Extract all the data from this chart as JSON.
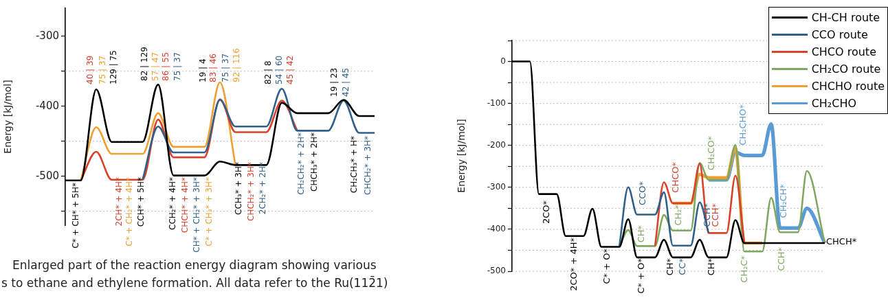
{
  "chart_data": [
    {
      "type": "line",
      "ylabel": "Energy [kJ/mol]",
      "ylim": [
        -570,
        -260
      ],
      "yticks": [
        {
          "value": -550,
          "label": null
        },
        -500,
        {
          "value": -450,
          "label": null
        },
        -400,
        {
          "value": -350,
          "label": null
        },
        -300
      ],
      "grid": true,
      "categories": [
        null,
        null,
        null,
        null,
        null,
        null,
        null,
        null,
        null,
        null,
        null,
        null,
        null,
        null,
        null,
        null,
        null,
        null,
        null,
        null,
        null
      ],
      "series": [
        {
          "color": "#000000",
          "values": [
            -506,
            -506,
            -376,
            -451,
            -451,
            -451,
            -369,
            -499,
            -499,
            -499,
            -479,
            -484,
            -484,
            -484,
            -395,
            -410,
            -410,
            -410,
            -391,
            -414,
            -414
          ]
        },
        {
          "color": "#2f5f8a",
          "values": [
            null,
            null,
            null,
            null,
            null,
            -505,
            -429,
            -466,
            -466,
            -466,
            -391,
            -429,
            -429,
            -429,
            -375,
            -435,
            -435,
            -435,
            -392,
            -438,
            -438
          ]
        },
        {
          "color": "#d9412b",
          "values": [
            null,
            -506,
            -465,
            -505,
            -505,
            -505,
            -419,
            -473,
            -473,
            -473,
            -390,
            -437,
            -437,
            -437,
            -392,
            -435,
            null,
            null,
            null,
            null,
            null
          ]
        },
        {
          "color": "#f0a030",
          "values": [
            null,
            -506,
            -430,
            -468,
            -468,
            -468,
            -410,
            -458,
            -458,
            -458,
            -366,
            -484,
            null,
            null,
            null,
            null,
            null,
            null,
            null,
            null,
            null
          ]
        }
      ],
      "annotations": [
        "40 | 39",
        "75 | 37",
        "129 | 75",
        "82 | 129",
        "57 | 47",
        "86 | 55",
        "75 | 37",
        "19 | 4",
        "83 | 46",
        "75 | 37",
        "92 | 116",
        "82 | 8",
        "54 | 60",
        "45 | 42",
        "19 | 23",
        "42 | 45",
        "C* + CH* + 5H*",
        "2CH* + 4H*",
        "C* + CH₂* + 4H*",
        "CCH* + 5H*",
        "CCH₂* + 4H*",
        "CHCH* + 4H*",
        "CH* + CH₂* + 3H*",
        "C* + CH₃* + 3H*",
        "CCH₃* + 3H*",
        "CHCH₂* + 3H*",
        "2CH₂* + 2H*",
        "CH₂CH₂* + 2H*",
        "CHCH₃* + 2H*",
        "CH₂CH₃* + H*",
        "CHCH₂* + 3H*",
        "Enlarged part of the reaction energy diagram showing various",
        "s to ethane and ethylene formation. All data refer to the Ru(112̄1)"
      ]
    },
    {
      "type": "line",
      "ylabel": "Energy [kJ/mol]",
      "ylim": [
        -500,
        50
      ],
      "yticks": [
        -500,
        {
          "value": -450,
          "label": null
        },
        -400,
        {
          "value": -350,
          "label": null
        },
        -300,
        {
          "value": -250,
          "label": null
        },
        -200,
        {
          "value": -150,
          "label": null
        },
        -100,
        {
          "value": -50,
          "label": null
        },
        0,
        {
          "value": 50,
          "label": null
        }
      ],
      "grid": true,
      "legend": "top right",
      "categories": [
        null,
        null,
        null,
        null,
        null,
        null,
        null,
        null,
        null,
        null,
        null,
        null,
        null,
        null,
        null,
        null,
        null,
        null,
        null,
        null,
        null,
        null,
        null,
        null,
        null,
        null,
        null,
        null,
        null,
        null,
        null,
        null,
        null,
        null,
        null,
        null
      ],
      "series": [
        {
          "name": "CH-CH route",
          "color": "#000000",
          "values": [
            0,
            0,
            0,
            -316,
            -316,
            -316,
            -416,
            -416,
            -416,
            -351,
            -442,
            -442,
            -442,
            -376,
            -467,
            -467,
            -467,
            -425,
            -467,
            -467,
            -467,
            -425,
            -467,
            -467,
            -467,
            -378,
            -433,
            -433,
            -433,
            -433,
            -433,
            -433,
            -433,
            -433,
            -433,
            -433
          ]
        },
        {
          "name": "CCO route",
          "color": "#2f5f8a",
          "values": [
            null,
            null,
            null,
            null,
            null,
            null,
            null,
            null,
            null,
            null,
            null,
            null,
            -442,
            -300,
            -365,
            -365,
            -365,
            -312,
            -439,
            -439,
            -439,
            -336,
            -409,
            null,
            null,
            null,
            null,
            null,
            null,
            null,
            null,
            null,
            null,
            null,
            null,
            null
          ]
        },
        {
          "name": "CHCO route",
          "color": "#d9412b",
          "values": [
            null,
            null,
            null,
            null,
            null,
            null,
            null,
            null,
            null,
            null,
            null,
            null,
            null,
            null,
            null,
            null,
            -440,
            -288,
            -338,
            -338,
            -338,
            -244,
            -409,
            -409,
            -409,
            -272,
            -433,
            null,
            null,
            null,
            null,
            null,
            null,
            null,
            null,
            null
          ]
        },
        {
          "name": "CH₂CO route",
          "color": "#7fa860",
          "values": [
            null,
            null,
            null,
            null,
            null,
            null,
            null,
            null,
            null,
            null,
            null,
            null,
            -442,
            -402,
            -440,
            -440,
            -440,
            -366,
            -403,
            -403,
            -403,
            -242,
            -282,
            -282,
            -282,
            -199,
            -453,
            -453,
            -453,
            -325,
            -407,
            -407,
            -407,
            -261,
            null,
            -433
          ]
        },
        {
          "name": "CHCHO route",
          "color": "#f0a030",
          "values": [
            null,
            null,
            null,
            null,
            null,
            null,
            null,
            null,
            null,
            null,
            null,
            null,
            null,
            null,
            null,
            null,
            null,
            null,
            -338,
            -338,
            -338,
            -269,
            -277,
            -277,
            -277,
            -206,
            -433,
            -433,
            -433,
            null,
            null,
            null,
            null,
            null,
            null,
            null
          ]
        },
        {
          "name": "CH₂CHO",
          "color": "#5b9bd5",
          "values": [
            null,
            null,
            null,
            null,
            null,
            null,
            null,
            null,
            null,
            null,
            null,
            null,
            null,
            null,
            null,
            null,
            null,
            null,
            null,
            null,
            null,
            null,
            -282,
            -282,
            -282,
            -216,
            -224,
            -224,
            -224,
            -149,
            -397,
            -397,
            -397,
            -350,
            null,
            -433
          ]
        }
      ],
      "annotations": [
        "2CO*",
        "2CO* + 4H*",
        "C* + O*",
        "C* + O*",
        "CCO*",
        "CH*",
        "CH*",
        "CC*",
        "CHCO*",
        "CH₂*",
        "CH*",
        "CCH*",
        "CCH*",
        "CH₂CO*",
        "CH₂CHO*",
        "CH₂C*",
        "CH₂CH*",
        "CCH*",
        "CHCH*"
      ]
    }
  ]
}
